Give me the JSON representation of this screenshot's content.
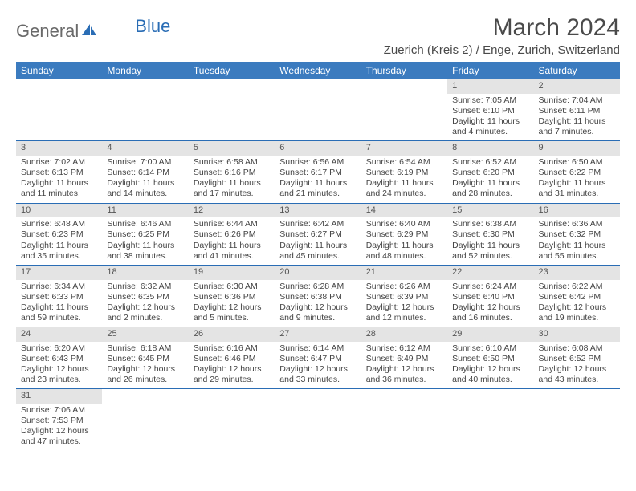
{
  "brand": {
    "word1": "General",
    "word2": "Blue"
  },
  "title": "March 2024",
  "location": "Zuerich (Kreis 2) / Enge, Zurich, Switzerland",
  "colors": {
    "header_bg": "#3b7bbf",
    "header_text": "#ffffff",
    "daynum_bg": "#e4e4e4",
    "row_border": "#2a6db5",
    "text": "#444444",
    "brand_gray": "#6a6a6a",
    "brand_blue": "#2a6db5"
  },
  "weekdays": [
    "Sunday",
    "Monday",
    "Tuesday",
    "Wednesday",
    "Thursday",
    "Friday",
    "Saturday"
  ],
  "weeks": [
    [
      {
        "n": "",
        "sr": "",
        "ss": "",
        "dl": ""
      },
      {
        "n": "",
        "sr": "",
        "ss": "",
        "dl": ""
      },
      {
        "n": "",
        "sr": "",
        "ss": "",
        "dl": ""
      },
      {
        "n": "",
        "sr": "",
        "ss": "",
        "dl": ""
      },
      {
        "n": "",
        "sr": "",
        "ss": "",
        "dl": ""
      },
      {
        "n": "1",
        "sr": "Sunrise: 7:05 AM",
        "ss": "Sunset: 6:10 PM",
        "dl": "Daylight: 11 hours and 4 minutes."
      },
      {
        "n": "2",
        "sr": "Sunrise: 7:04 AM",
        "ss": "Sunset: 6:11 PM",
        "dl": "Daylight: 11 hours and 7 minutes."
      }
    ],
    [
      {
        "n": "3",
        "sr": "Sunrise: 7:02 AM",
        "ss": "Sunset: 6:13 PM",
        "dl": "Daylight: 11 hours and 11 minutes."
      },
      {
        "n": "4",
        "sr": "Sunrise: 7:00 AM",
        "ss": "Sunset: 6:14 PM",
        "dl": "Daylight: 11 hours and 14 minutes."
      },
      {
        "n": "5",
        "sr": "Sunrise: 6:58 AM",
        "ss": "Sunset: 6:16 PM",
        "dl": "Daylight: 11 hours and 17 minutes."
      },
      {
        "n": "6",
        "sr": "Sunrise: 6:56 AM",
        "ss": "Sunset: 6:17 PM",
        "dl": "Daylight: 11 hours and 21 minutes."
      },
      {
        "n": "7",
        "sr": "Sunrise: 6:54 AM",
        "ss": "Sunset: 6:19 PM",
        "dl": "Daylight: 11 hours and 24 minutes."
      },
      {
        "n": "8",
        "sr": "Sunrise: 6:52 AM",
        "ss": "Sunset: 6:20 PM",
        "dl": "Daylight: 11 hours and 28 minutes."
      },
      {
        "n": "9",
        "sr": "Sunrise: 6:50 AM",
        "ss": "Sunset: 6:22 PM",
        "dl": "Daylight: 11 hours and 31 minutes."
      }
    ],
    [
      {
        "n": "10",
        "sr": "Sunrise: 6:48 AM",
        "ss": "Sunset: 6:23 PM",
        "dl": "Daylight: 11 hours and 35 minutes."
      },
      {
        "n": "11",
        "sr": "Sunrise: 6:46 AM",
        "ss": "Sunset: 6:25 PM",
        "dl": "Daylight: 11 hours and 38 minutes."
      },
      {
        "n": "12",
        "sr": "Sunrise: 6:44 AM",
        "ss": "Sunset: 6:26 PM",
        "dl": "Daylight: 11 hours and 41 minutes."
      },
      {
        "n": "13",
        "sr": "Sunrise: 6:42 AM",
        "ss": "Sunset: 6:27 PM",
        "dl": "Daylight: 11 hours and 45 minutes."
      },
      {
        "n": "14",
        "sr": "Sunrise: 6:40 AM",
        "ss": "Sunset: 6:29 PM",
        "dl": "Daylight: 11 hours and 48 minutes."
      },
      {
        "n": "15",
        "sr": "Sunrise: 6:38 AM",
        "ss": "Sunset: 6:30 PM",
        "dl": "Daylight: 11 hours and 52 minutes."
      },
      {
        "n": "16",
        "sr": "Sunrise: 6:36 AM",
        "ss": "Sunset: 6:32 PM",
        "dl": "Daylight: 11 hours and 55 minutes."
      }
    ],
    [
      {
        "n": "17",
        "sr": "Sunrise: 6:34 AM",
        "ss": "Sunset: 6:33 PM",
        "dl": "Daylight: 11 hours and 59 minutes."
      },
      {
        "n": "18",
        "sr": "Sunrise: 6:32 AM",
        "ss": "Sunset: 6:35 PM",
        "dl": "Daylight: 12 hours and 2 minutes."
      },
      {
        "n": "19",
        "sr": "Sunrise: 6:30 AM",
        "ss": "Sunset: 6:36 PM",
        "dl": "Daylight: 12 hours and 5 minutes."
      },
      {
        "n": "20",
        "sr": "Sunrise: 6:28 AM",
        "ss": "Sunset: 6:38 PM",
        "dl": "Daylight: 12 hours and 9 minutes."
      },
      {
        "n": "21",
        "sr": "Sunrise: 6:26 AM",
        "ss": "Sunset: 6:39 PM",
        "dl": "Daylight: 12 hours and 12 minutes."
      },
      {
        "n": "22",
        "sr": "Sunrise: 6:24 AM",
        "ss": "Sunset: 6:40 PM",
        "dl": "Daylight: 12 hours and 16 minutes."
      },
      {
        "n": "23",
        "sr": "Sunrise: 6:22 AM",
        "ss": "Sunset: 6:42 PM",
        "dl": "Daylight: 12 hours and 19 minutes."
      }
    ],
    [
      {
        "n": "24",
        "sr": "Sunrise: 6:20 AM",
        "ss": "Sunset: 6:43 PM",
        "dl": "Daylight: 12 hours and 23 minutes."
      },
      {
        "n": "25",
        "sr": "Sunrise: 6:18 AM",
        "ss": "Sunset: 6:45 PM",
        "dl": "Daylight: 12 hours and 26 minutes."
      },
      {
        "n": "26",
        "sr": "Sunrise: 6:16 AM",
        "ss": "Sunset: 6:46 PM",
        "dl": "Daylight: 12 hours and 29 minutes."
      },
      {
        "n": "27",
        "sr": "Sunrise: 6:14 AM",
        "ss": "Sunset: 6:47 PM",
        "dl": "Daylight: 12 hours and 33 minutes."
      },
      {
        "n": "28",
        "sr": "Sunrise: 6:12 AM",
        "ss": "Sunset: 6:49 PM",
        "dl": "Daylight: 12 hours and 36 minutes."
      },
      {
        "n": "29",
        "sr": "Sunrise: 6:10 AM",
        "ss": "Sunset: 6:50 PM",
        "dl": "Daylight: 12 hours and 40 minutes."
      },
      {
        "n": "30",
        "sr": "Sunrise: 6:08 AM",
        "ss": "Sunset: 6:52 PM",
        "dl": "Daylight: 12 hours and 43 minutes."
      }
    ],
    [
      {
        "n": "31",
        "sr": "Sunrise: 7:06 AM",
        "ss": "Sunset: 7:53 PM",
        "dl": "Daylight: 12 hours and 47 minutes."
      },
      {
        "n": "",
        "sr": "",
        "ss": "",
        "dl": ""
      },
      {
        "n": "",
        "sr": "",
        "ss": "",
        "dl": ""
      },
      {
        "n": "",
        "sr": "",
        "ss": "",
        "dl": ""
      },
      {
        "n": "",
        "sr": "",
        "ss": "",
        "dl": ""
      },
      {
        "n": "",
        "sr": "",
        "ss": "",
        "dl": ""
      },
      {
        "n": "",
        "sr": "",
        "ss": "",
        "dl": ""
      }
    ]
  ]
}
